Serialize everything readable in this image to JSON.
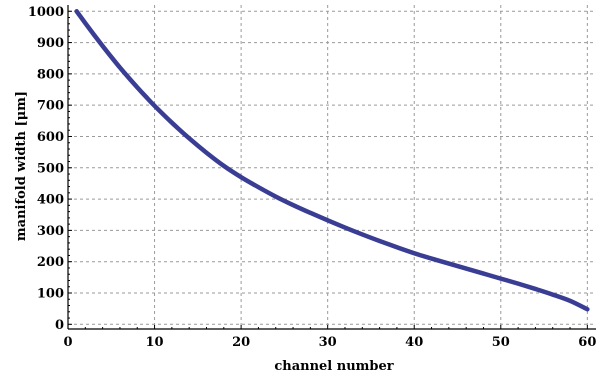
{
  "chart_data": {
    "type": "line",
    "title": "",
    "xlabel": "channel number",
    "ylabel": "manifold width [μm]",
    "xlim": [
      0,
      61
    ],
    "ylim": [
      -15,
      1020
    ],
    "xticks": [
      0,
      10,
      20,
      30,
      40,
      50,
      60
    ],
    "yticks": [
      0,
      100,
      200,
      300,
      400,
      500,
      600,
      700,
      800,
      900,
      1000
    ],
    "grid": true,
    "legend": "none",
    "series": [
      {
        "color": "#3a3d94",
        "x": [
          1,
          2,
          3,
          4,
          5,
          6,
          7,
          8,
          9,
          10,
          12,
          14,
          16,
          18,
          20,
          22,
          24,
          26,
          28,
          30,
          32,
          34,
          36,
          38,
          40,
          42,
          44,
          46,
          48,
          50,
          52,
          54,
          56,
          58,
          60
        ],
        "y": [
          1000,
          962,
          925,
          889,
          854,
          820,
          788,
          757,
          727,
          698,
          644,
          594,
          548,
          506,
          470,
          438,
          408,
          381,
          356,
          332,
          309,
          287,
          266,
          246,
          227,
          210,
          194,
          178,
          162,
          146,
          130,
          113,
          95,
          75,
          48
        ]
      }
    ]
  }
}
